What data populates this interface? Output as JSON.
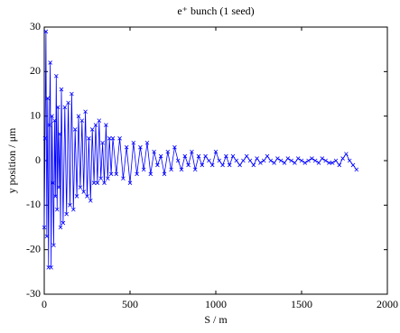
{
  "chart_data": {
    "type": "line",
    "title": "e⁺ bunch (1 seed)",
    "x_label": "S / m",
    "y_label": "y position / μm",
    "xlim": [
      0,
      2000
    ],
    "xticks": [
      0,
      500,
      1000,
      1500,
      2000
    ],
    "ylim": [
      -30,
      30
    ],
    "yticks": [
      -30,
      -20,
      -10,
      0,
      10,
      20,
      30
    ],
    "grid": false,
    "series": [
      {
        "color": "#0000ff",
        "marker": "x",
        "x": [
          0,
          5,
          10,
          15,
          20,
          25,
          30,
          35,
          40,
          45,
          50,
          55,
          60,
          65,
          70,
          75,
          80,
          85,
          90,
          95,
          100,
          110,
          120,
          130,
          140,
          150,
          160,
          170,
          180,
          190,
          200,
          210,
          220,
          230,
          240,
          250,
          260,
          270,
          280,
          290,
          300,
          310,
          320,
          330,
          340,
          350,
          360,
          370,
          380,
          390,
          400,
          420,
          440,
          460,
          480,
          500,
          520,
          540,
          560,
          580,
          600,
          620,
          640,
          660,
          680,
          700,
          720,
          740,
          760,
          780,
          800,
          820,
          840,
          860,
          880,
          900,
          920,
          940,
          960,
          980,
          1000,
          1020,
          1040,
          1060,
          1080,
          1100,
          1120,
          1140,
          1160,
          1180,
          1200,
          1220,
          1240,
          1260,
          1280,
          1300,
          1320,
          1340,
          1360,
          1380,
          1400,
          1420,
          1440,
          1460,
          1480,
          1500,
          1520,
          1540,
          1560,
          1580,
          1600,
          1620,
          1640,
          1660,
          1680,
          1700,
          1720,
          1740,
          1760,
          1780,
          1800,
          1820
        ],
        "values": [
          -15,
          5,
          29,
          -17,
          14,
          -24,
          8,
          22,
          -24,
          10,
          -5,
          -19,
          9,
          -8,
          19,
          -11,
          12,
          -6,
          6,
          -15,
          16,
          -14,
          12,
          -12,
          13,
          -10,
          15,
          -11,
          7,
          -8,
          10,
          -6,
          9,
          -7,
          11,
          -8,
          5,
          -9,
          7,
          -5,
          8,
          -5,
          9,
          -4,
          4,
          -5,
          8,
          -4,
          5,
          -3,
          5,
          -3,
          5,
          -4,
          3,
          -5,
          4,
          -3,
          3,
          -2,
          4,
          -3,
          2,
          -1,
          1,
          -3,
          2,
          -2,
          3,
          0,
          -2,
          1,
          -1,
          2,
          -2,
          1,
          -1,
          1,
          0,
          -1,
          2,
          0,
          -1,
          1,
          -1,
          1,
          0,
          -1,
          0,
          1,
          0,
          -1,
          0.5,
          -0.5,
          0,
          1,
          0,
          -0.5,
          0.5,
          0,
          -0.5,
          0.5,
          0,
          -0.5,
          0.5,
          0,
          -0.5,
          0,
          0.5,
          0,
          -0.5,
          0.5,
          0,
          -0.5,
          -0.5,
          0,
          -1,
          0.5,
          1.5,
          0,
          -1,
          -2
        ]
      }
    ]
  }
}
